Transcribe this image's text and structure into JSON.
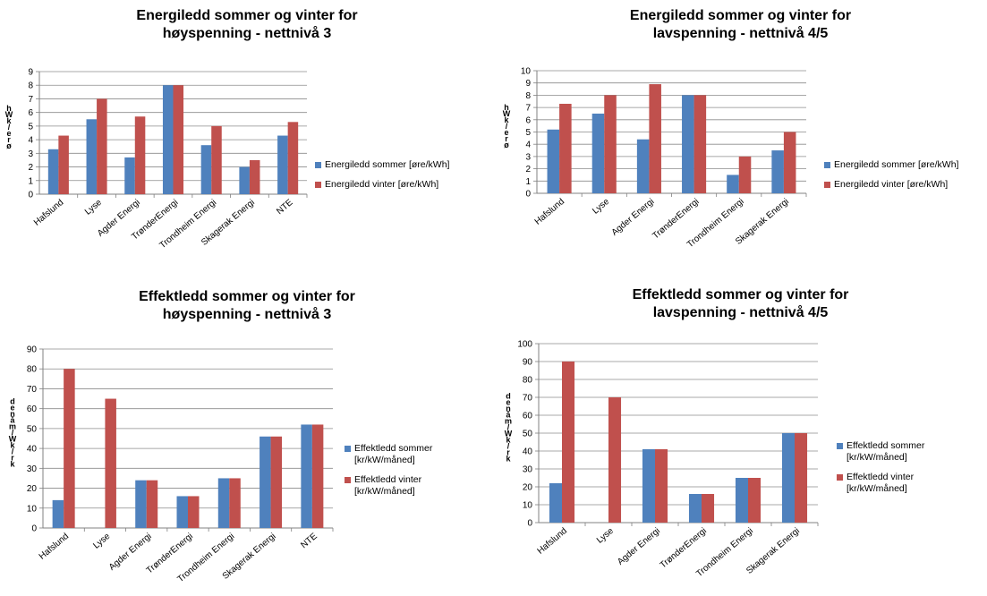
{
  "colors": {
    "summer": "#4f81bd",
    "winter": "#c0504d",
    "grid": "#8c8c8c",
    "axis": "#808080"
  },
  "chart_data": [
    {
      "type": "bar",
      "title": [
        "Energiledd sommer og vinter for",
        "høyspenning - nettnivå 3"
      ],
      "ylabel": "øre/kWh",
      "ylim": [
        0,
        9
      ],
      "yticks": [
        0,
        1,
        2,
        3,
        4,
        5,
        6,
        7,
        8,
        9
      ],
      "grid": true,
      "legend_position": "right",
      "categories": [
        "Hafslund",
        "Lyse",
        "Agder Energi",
        "TrønderEnergi",
        "Trondheim Energi",
        "Skagerak Energi",
        "NTE"
      ],
      "series": [
        {
          "name": "Energiledd sommer [øre/kWh]",
          "values": [
            3.3,
            5.5,
            2.7,
            8.0,
            3.6,
            2.0,
            4.3
          ]
        },
        {
          "name": "Energiledd vinter [øre/kWh]",
          "values": [
            4.3,
            7.0,
            5.7,
            8.0,
            5.0,
            2.5,
            5.3
          ]
        }
      ]
    },
    {
      "type": "bar",
      "title": [
        "Energiledd sommer og vinter for",
        "lavspenning - nettnivå 4/5"
      ],
      "ylabel": "øre/kWh",
      "ylim": [
        0,
        10
      ],
      "yticks": [
        0,
        1,
        2,
        3,
        4,
        5,
        6,
        7,
        8,
        9,
        10
      ],
      "grid": true,
      "legend_position": "right",
      "categories": [
        "Hafslund",
        "Lyse",
        "Agder Energi",
        "TrønderEnergi",
        "Trondheim Energi",
        "Skagerak Energi"
      ],
      "series": [
        {
          "name": "Energiledd sommer [øre/kWh]",
          "values": [
            5.2,
            6.5,
            4.4,
            8.0,
            1.5,
            3.5
          ]
        },
        {
          "name": "Energiledd vinter [øre/kWh]",
          "values": [
            7.3,
            8.0,
            8.9,
            8.0,
            3.0,
            5.0
          ]
        }
      ]
    },
    {
      "type": "bar",
      "title": [
        "Effektledd sommer og vinter for",
        "høyspenning - nettnivå 3"
      ],
      "ylabel": "kr/kW/måned",
      "ylim": [
        0,
        90
      ],
      "yticks": [
        0,
        10,
        20,
        30,
        40,
        50,
        60,
        70,
        80,
        90
      ],
      "grid": true,
      "legend_position": "right",
      "categories": [
        "Hafslund",
        "Lyse",
        "Agder Energi",
        "TrønderEnergi",
        "Trondheim Energi",
        "Skagerak Energi",
        "NTE"
      ],
      "series": [
        {
          "name": "Effektledd sommer [kr/kW/måned]",
          "values": [
            14,
            0,
            24,
            16,
            25,
            46,
            52
          ]
        },
        {
          "name": "Effektledd vinter [kr/kW/måned]",
          "values": [
            80,
            65,
            24,
            16,
            25,
            46,
            52
          ]
        }
      ]
    },
    {
      "type": "bar",
      "title": [
        "Effektledd sommer og vinter for",
        "lavspenning - nettnivå 4/5"
      ],
      "ylabel": "kr/kW/måned",
      "ylim": [
        0,
        100
      ],
      "yticks": [
        0,
        10,
        20,
        30,
        40,
        50,
        60,
        70,
        80,
        90,
        100
      ],
      "grid": true,
      "legend_position": "right",
      "categories": [
        "Hafslund",
        "Lyse",
        "Agder Energi",
        "TrønderEnergi",
        "Trondheim Energi",
        "Skagerak Energi"
      ],
      "series": [
        {
          "name": "Effektledd sommer [kr/kW/måned]",
          "values": [
            22,
            0,
            41,
            16,
            25,
            50
          ]
        },
        {
          "name": "Effektledd vinter [kr/kW/måned]",
          "values": [
            90,
            70,
            41,
            16,
            25,
            50
          ]
        }
      ]
    }
  ]
}
